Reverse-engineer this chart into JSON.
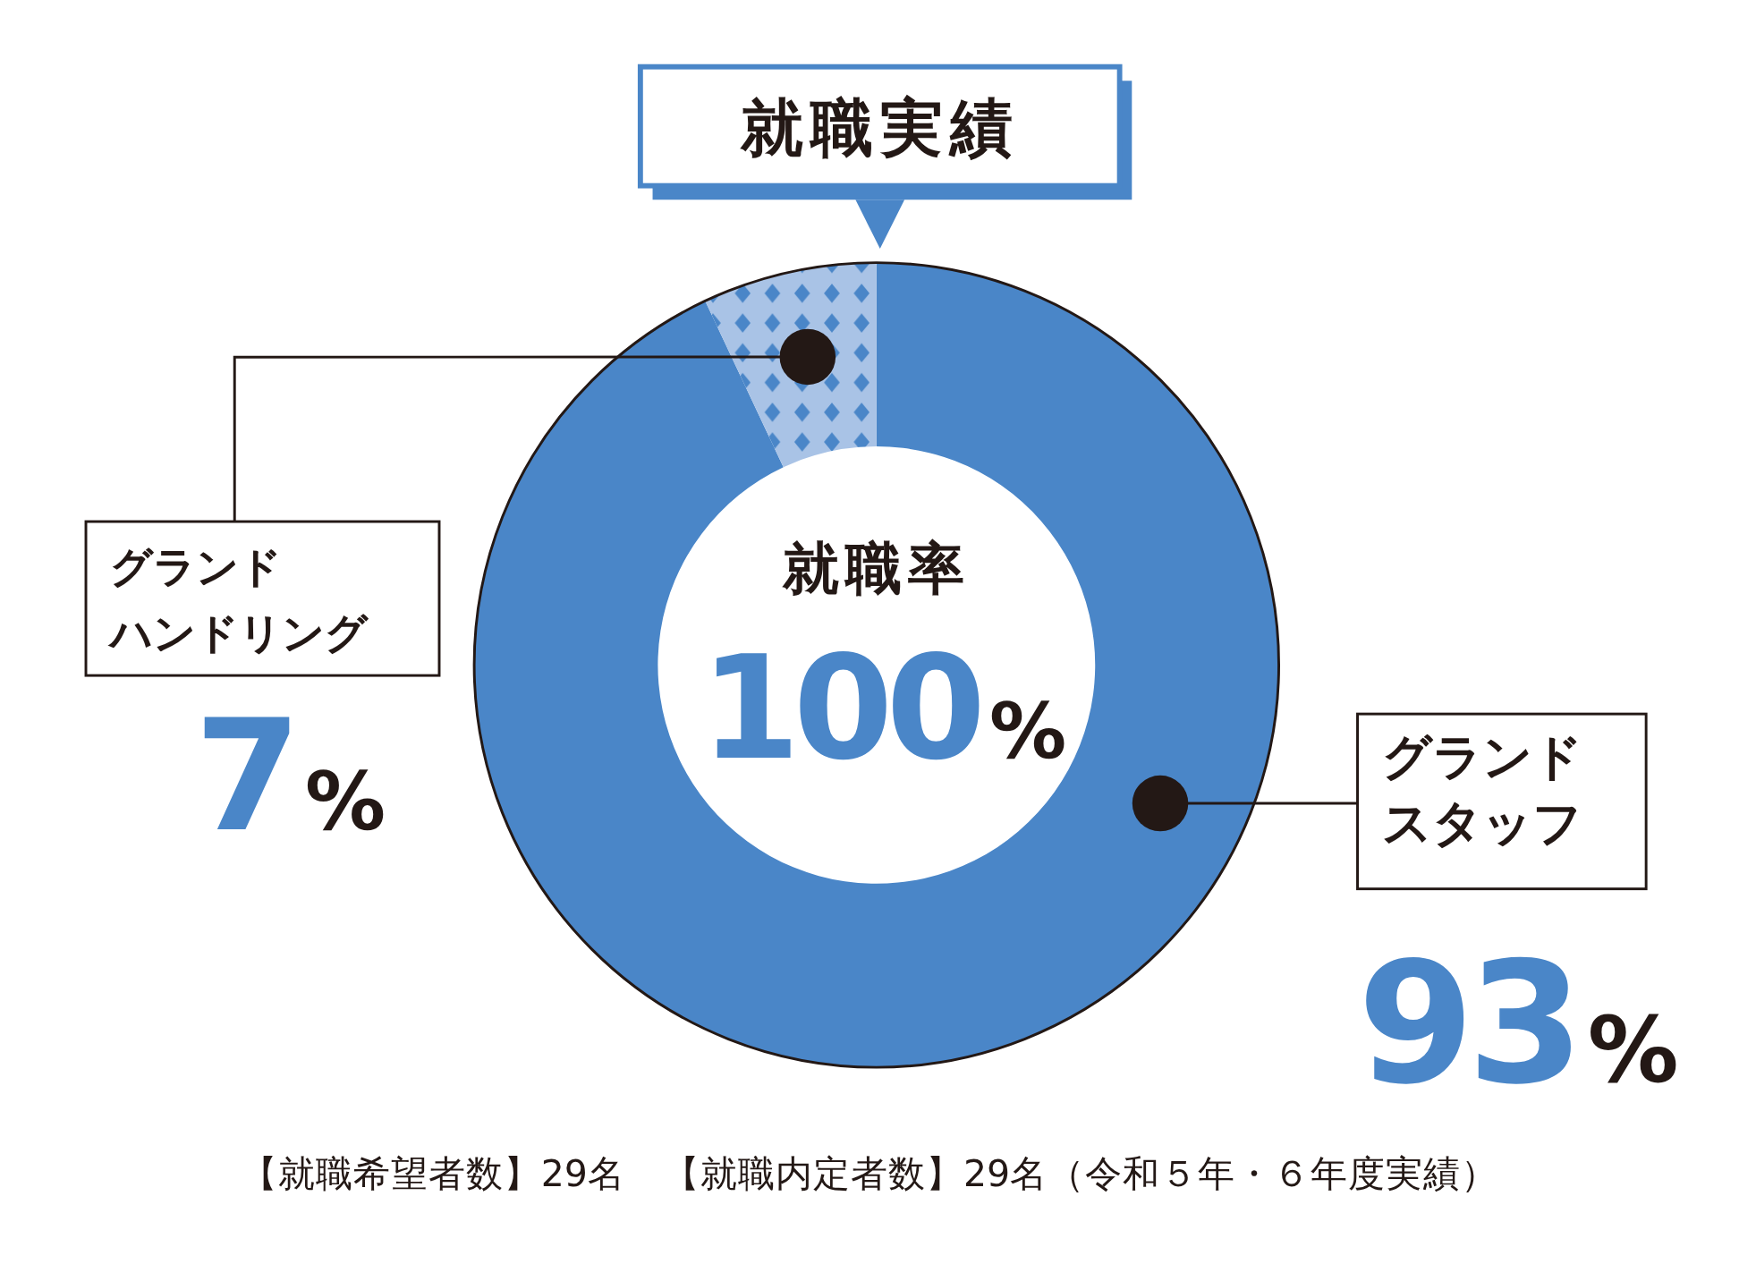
{
  "chart_data": {
    "type": "donut",
    "title": "就職実績",
    "categories": [
      "グランドスタッフ",
      "グランドハンドリング"
    ],
    "values": [
      93,
      7
    ],
    "colors": [
      "#4a86c8",
      "#a9c3e6"
    ],
    "value_labels": [
      "93%",
      "7%"
    ],
    "annotations": [
      "就職率",
      "100%",
      "【就職希望者数】29名　【就職内定者数】29名（令和５年・６年度実績）"
    ]
  }
}
